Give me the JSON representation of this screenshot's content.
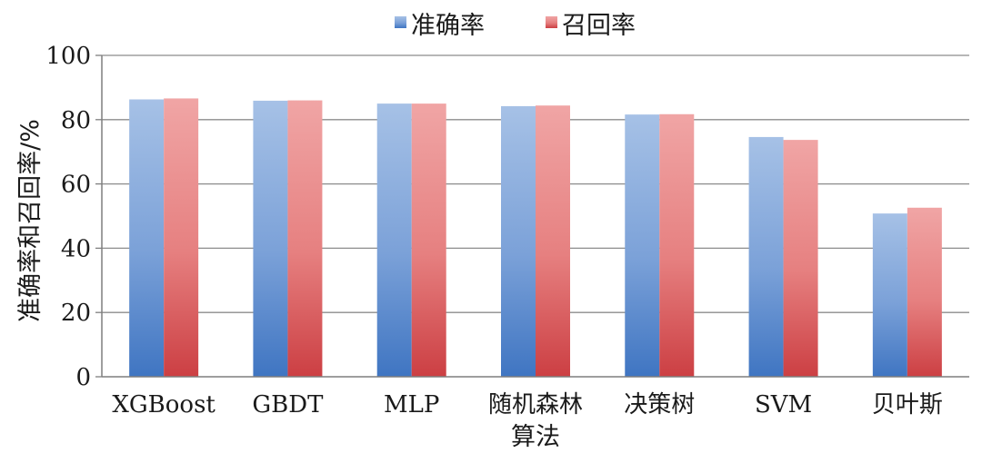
{
  "chart_data": {
    "type": "bar",
    "categories": [
      "XGBoost",
      "GBDT",
      "MLP",
      "随机森林",
      "决策树",
      "SVM",
      "贝叶斯"
    ],
    "series": [
      {
        "name": "准确率",
        "values": [
          86.3,
          85.9,
          85.0,
          84.2,
          81.6,
          74.6,
          50.8
        ],
        "color": "#4f81bd"
      },
      {
        "name": "召回率",
        "values": [
          86.6,
          86.0,
          85.0,
          84.4,
          81.7,
          73.7,
          52.6
        ],
        "color": "#c0504d"
      }
    ],
    "xlabel": "算法",
    "ylabel": "准确率和召回率/%",
    "ylim": [
      0,
      100
    ],
    "yticks": [
      0,
      20,
      40,
      60,
      80,
      100
    ],
    "grid": true,
    "legend_position": "top"
  }
}
